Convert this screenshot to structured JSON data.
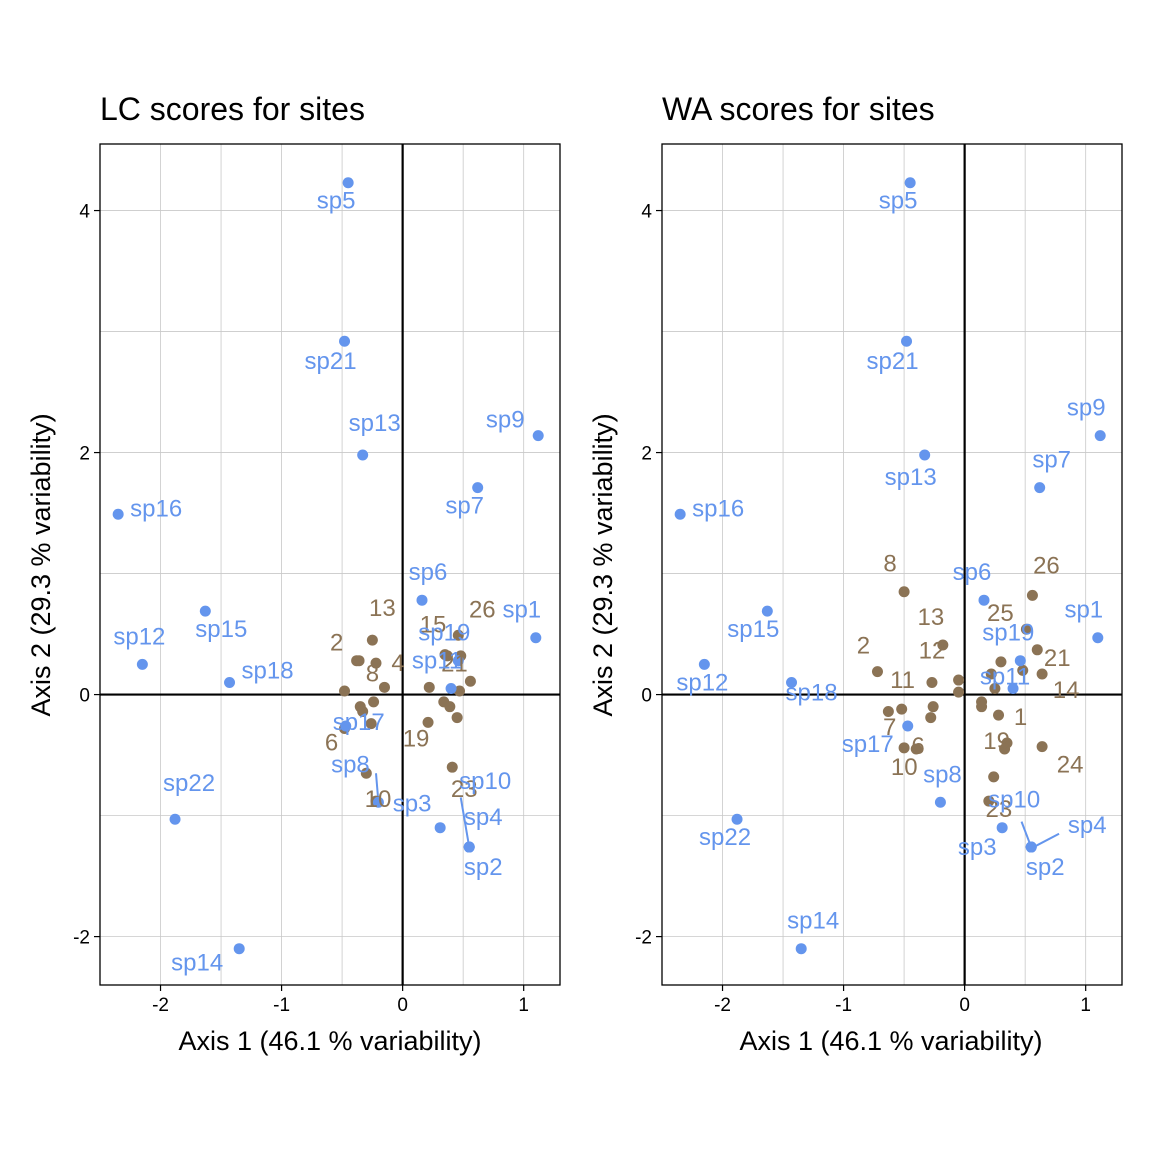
{
  "colors": {
    "species": "#6495ED",
    "sites": "#8B7355"
  },
  "chart_data": [
    {
      "type": "scatter",
      "title": "LC scores for sites",
      "xlabel": "Axis 1 (46.1 % variability)",
      "ylabel": "Axis 2 (29.3 % variability)",
      "xlim": [
        -2.5,
        1.3
      ],
      "ylim": [
        -2.4,
        4.55
      ],
      "xticks": [
        -2,
        -1,
        0,
        1
      ],
      "yticks": [
        -2,
        0,
        2,
        4
      ],
      "grid": true,
      "series": [
        {
          "name": "species",
          "color": "#6495ED",
          "points": [
            {
              "label": "sp5",
              "x": -0.45,
              "y": 4.23
            },
            {
              "label": "sp21",
              "x": -0.48,
              "y": 2.92
            },
            {
              "label": "sp13",
              "x": -0.33,
              "y": 1.98
            },
            {
              "label": "sp9",
              "x": 1.12,
              "y": 2.14
            },
            {
              "label": "sp7",
              "x": 0.62,
              "y": 1.71
            },
            {
              "label": "sp16",
              "x": -2.35,
              "y": 1.49
            },
            {
              "label": "sp6",
              "x": 0.16,
              "y": 0.78
            },
            {
              "label": "sp1",
              "x": 1.1,
              "y": 0.47
            },
            {
              "label": "sp15",
              "x": -1.63,
              "y": 0.69
            },
            {
              "label": "sp12",
              "x": -2.15,
              "y": 0.25
            },
            {
              "label": "sp18",
              "x": -1.43,
              "y": 0.1
            },
            {
              "label": "sp19",
              "x": 0.46,
              "y": 0.28
            },
            {
              "label": "sp11",
              "x": 0.4,
              "y": 0.05
            },
            {
              "label": "sp17",
              "x": -0.47,
              "y": -0.26
            },
            {
              "label": "sp8",
              "x": -0.2,
              "y": -0.89
            },
            {
              "label": "sp3",
              "x": 0.31,
              "y": -1.1
            },
            {
              "label": "sp10",
              "x": 0.55,
              "y": -1.26
            },
            {
              "label": "sp4",
              "x": 0.55,
              "y": -1.26
            },
            {
              "label": "sp2",
              "x": 0.55,
              "y": -1.26
            },
            {
              "label": "sp22",
              "x": -1.88,
              "y": -1.03
            },
            {
              "label": "sp14",
              "x": -1.35,
              "y": -2.1
            }
          ]
        },
        {
          "name": "sites",
          "color": "#8B7355",
          "points": [
            {
              "label": "13",
              "x": -0.25,
              "y": 0.45
            },
            {
              "label": "2",
              "x": -0.38,
              "y": 0.28
            },
            {
              "label": "",
              "x": -0.36,
              "y": 0.28
            },
            {
              "label": "4",
              "x": -0.22,
              "y": 0.26
            },
            {
              "label": "8",
              "x": -0.15,
              "y": 0.06
            },
            {
              "label": "",
              "x": -0.48,
              "y": 0.03
            },
            {
              "label": "",
              "x": -0.35,
              "y": -0.1
            },
            {
              "label": "",
              "x": -0.33,
              "y": -0.14
            },
            {
              "label": "",
              "x": -0.24,
              "y": -0.06
            },
            {
              "label": "",
              "x": -0.26,
              "y": -0.24
            },
            {
              "label": "6",
              "x": -0.48,
              "y": -0.28
            },
            {
              "label": "",
              "x": -0.3,
              "y": -0.65
            },
            {
              "label": "10",
              "x": -0.22,
              "y": -0.88
            },
            {
              "label": "15",
              "x": 0.35,
              "y": 0.33
            },
            {
              "label": "",
              "x": 0.37,
              "y": 0.32
            },
            {
              "label": "26",
              "x": 0.46,
              "y": 0.49
            },
            {
              "label": "",
              "x": 0.48,
              "y": 0.32
            },
            {
              "label": "21",
              "x": 0.56,
              "y": 0.11
            },
            {
              "label": "",
              "x": 0.47,
              "y": 0.03
            },
            {
              "label": "",
              "x": 0.22,
              "y": 0.06
            },
            {
              "label": "",
              "x": 0.34,
              "y": -0.06
            },
            {
              "label": "",
              "x": 0.39,
              "y": -0.1
            },
            {
              "label": "",
              "x": 0.45,
              "y": -0.19
            },
            {
              "label": "19",
              "x": 0.21,
              "y": -0.23
            },
            {
              "label": "23",
              "x": 0.41,
              "y": -0.6
            }
          ]
        }
      ]
    },
    {
      "type": "scatter",
      "title": "WA scores for sites",
      "xlabel": "Axis 1 (46.1 % variability)",
      "ylabel": "Axis 2 (29.3 % variability)",
      "xlim": [
        -2.5,
        1.3
      ],
      "ylim": [
        -2.4,
        4.55
      ],
      "xticks": [
        -2,
        -1,
        0,
        1
      ],
      "yticks": [
        -2,
        0,
        2,
        4
      ],
      "grid": true,
      "series": [
        {
          "name": "species",
          "color": "#6495ED",
          "points": [
            {
              "label": "sp5",
              "x": -0.45,
              "y": 4.23
            },
            {
              "label": "sp21",
              "x": -0.48,
              "y": 2.92
            },
            {
              "label": "sp13",
              "x": -0.33,
              "y": 1.98
            },
            {
              "label": "sp9",
              "x": 1.12,
              "y": 2.14
            },
            {
              "label": "sp7",
              "x": 0.62,
              "y": 1.71
            },
            {
              "label": "sp16",
              "x": -2.35,
              "y": 1.49
            },
            {
              "label": "sp6",
              "x": 0.16,
              "y": 0.78
            },
            {
              "label": "sp1",
              "x": 1.1,
              "y": 0.47
            },
            {
              "label": "sp15",
              "x": -1.63,
              "y": 0.69
            },
            {
              "label": "sp12",
              "x": -2.15,
              "y": 0.25
            },
            {
              "label": "sp18",
              "x": -1.43,
              "y": 0.1
            },
            {
              "label": "sp19",
              "x": 0.46,
              "y": 0.28
            },
            {
              "label": "sp11",
              "x": 0.4,
              "y": 0.05
            },
            {
              "label": "sp17",
              "x": -0.47,
              "y": -0.26
            },
            {
              "label": "sp8",
              "x": -0.2,
              "y": -0.89
            },
            {
              "label": "sp10",
              "x": 0.31,
              "y": -1.1
            },
            {
              "label": "sp3",
              "x": 0.55,
              "y": -1.26
            },
            {
              "label": "sp4",
              "x": 0.55,
              "y": -1.26
            },
            {
              "label": "sp2",
              "x": 0.55,
              "y": -1.26
            },
            {
              "label": "sp22",
              "x": -1.88,
              "y": -1.03
            },
            {
              "label": "sp14",
              "x": -1.35,
              "y": -2.1
            }
          ]
        },
        {
          "name": "sites",
          "color": "#8B7355",
          "points": [
            {
              "label": "8",
              "x": -0.5,
              "y": 0.85
            },
            {
              "label": "13",
              "x": -0.18,
              "y": 0.41
            },
            {
              "label": "2",
              "x": -0.72,
              "y": 0.19
            },
            {
              "label": "12",
              "x": -0.27,
              "y": 0.1
            },
            {
              "label": "11",
              "x": -0.05,
              "y": 0.12
            },
            {
              "label": "",
              "x": -0.05,
              "y": 0.02
            },
            {
              "label": "",
              "x": -0.63,
              "y": -0.14
            },
            {
              "label": "7",
              "x": -0.52,
              "y": -0.12
            },
            {
              "label": "",
              "x": -0.26,
              "y": -0.1
            },
            {
              "label": "",
              "x": -0.28,
              "y": -0.19
            },
            {
              "label": "6",
              "x": -0.5,
              "y": -0.44
            },
            {
              "label": "10",
              "x": -0.4,
              "y": -0.45
            },
            {
              "label": "26",
              "x": 0.56,
              "y": 0.82
            },
            {
              "label": "25",
              "x": 0.51,
              "y": 0.54
            },
            {
              "label": "21",
              "x": 0.6,
              "y": 0.37
            },
            {
              "label": "",
              "x": 0.3,
              "y": 0.27
            },
            {
              "label": "",
              "x": 0.22,
              "y": 0.17
            },
            {
              "label": "14",
              "x": 0.64,
              "y": 0.17
            },
            {
              "label": "",
              "x": 0.48,
              "y": 0.2
            },
            {
              "label": "",
              "x": 0.25,
              "y": 0.05
            },
            {
              "label": "",
              "x": 0.14,
              "y": -0.06
            },
            {
              "label": "",
              "x": 0.14,
              "y": -0.1
            },
            {
              "label": "1",
              "x": 0.28,
              "y": -0.17
            },
            {
              "label": "",
              "x": 0.35,
              "y": -0.4
            },
            {
              "label": "19",
              "x": 0.33,
              "y": -0.45
            },
            {
              "label": "24",
              "x": 0.64,
              "y": -0.43
            },
            {
              "label": "",
              "x": 0.24,
              "y": -0.68
            },
            {
              "label": "23",
              "x": 0.2,
              "y": -0.88
            }
          ]
        }
      ]
    }
  ]
}
